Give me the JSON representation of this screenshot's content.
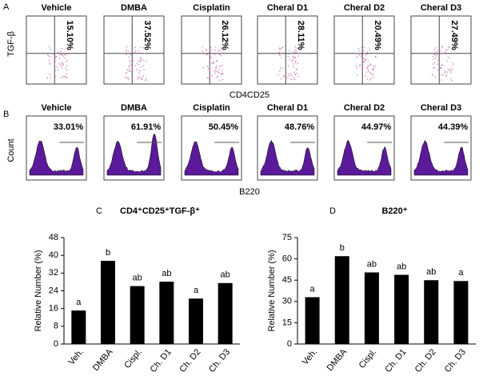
{
  "flow_panels": [
    {
      "label": "A",
      "titles": [
        "Vehicle",
        "DMBA",
        "Cisplatin",
        "Cheral D1",
        "Cheral D2",
        "Cheral D3"
      ],
      "percentages": [
        "15.10%",
        "37.52%",
        "26.12%",
        "28.11%",
        "20.49%",
        "27.49%"
      ],
      "y_label": "TGF-β",
      "x_label": "CD4CD25"
    },
    {
      "label": "B",
      "titles": [
        "Vehicle",
        "DMBA",
        "Cisplatin",
        "Cheral D1",
        "Cheral D2",
        "Cheral D3"
      ],
      "percentages": [
        "33.01%",
        "61.91%",
        "50.45%",
        "48.76%",
        "44.97%",
        "44.39%"
      ],
      "y_label": "Count",
      "x_label": "B220"
    }
  ],
  "chart_data": [
    {
      "type": "bar",
      "panel": "C",
      "title": "CD4⁺CD25⁺TGF-β⁺",
      "y_label": "Relative Number (%)",
      "categories": [
        "Veh.",
        "DMBA",
        "Cispl.",
        "Ch. D1",
        "Ch. D2",
        "Ch. D3"
      ],
      "values": [
        15.1,
        37.52,
        26.12,
        28.11,
        20.49,
        27.49
      ],
      "annotations": [
        "a",
        "b",
        "ab",
        "ab",
        "a",
        "ab"
      ],
      "color": "#000000",
      "ylim": [
        0,
        48
      ],
      "yticks": [
        0,
        8,
        16,
        24,
        32,
        40,
        48
      ]
    },
    {
      "type": "bar",
      "panel": "D",
      "title": "B220⁺",
      "y_label": "Relative Number (%)",
      "categories": [
        "Veh.",
        "DMBA",
        "Cispl.",
        "Ch. D1",
        "Ch. D2",
        "Ch. D3"
      ],
      "values": [
        33.01,
        61.91,
        50.45,
        48.76,
        44.97,
        44.39
      ],
      "annotations": [
        "a",
        "b",
        "ab",
        "ab",
        "ab",
        "a"
      ],
      "color": "#000000",
      "ylim": [
        0,
        75
      ],
      "yticks": [
        0,
        15,
        30,
        45,
        60,
        75
      ]
    }
  ]
}
